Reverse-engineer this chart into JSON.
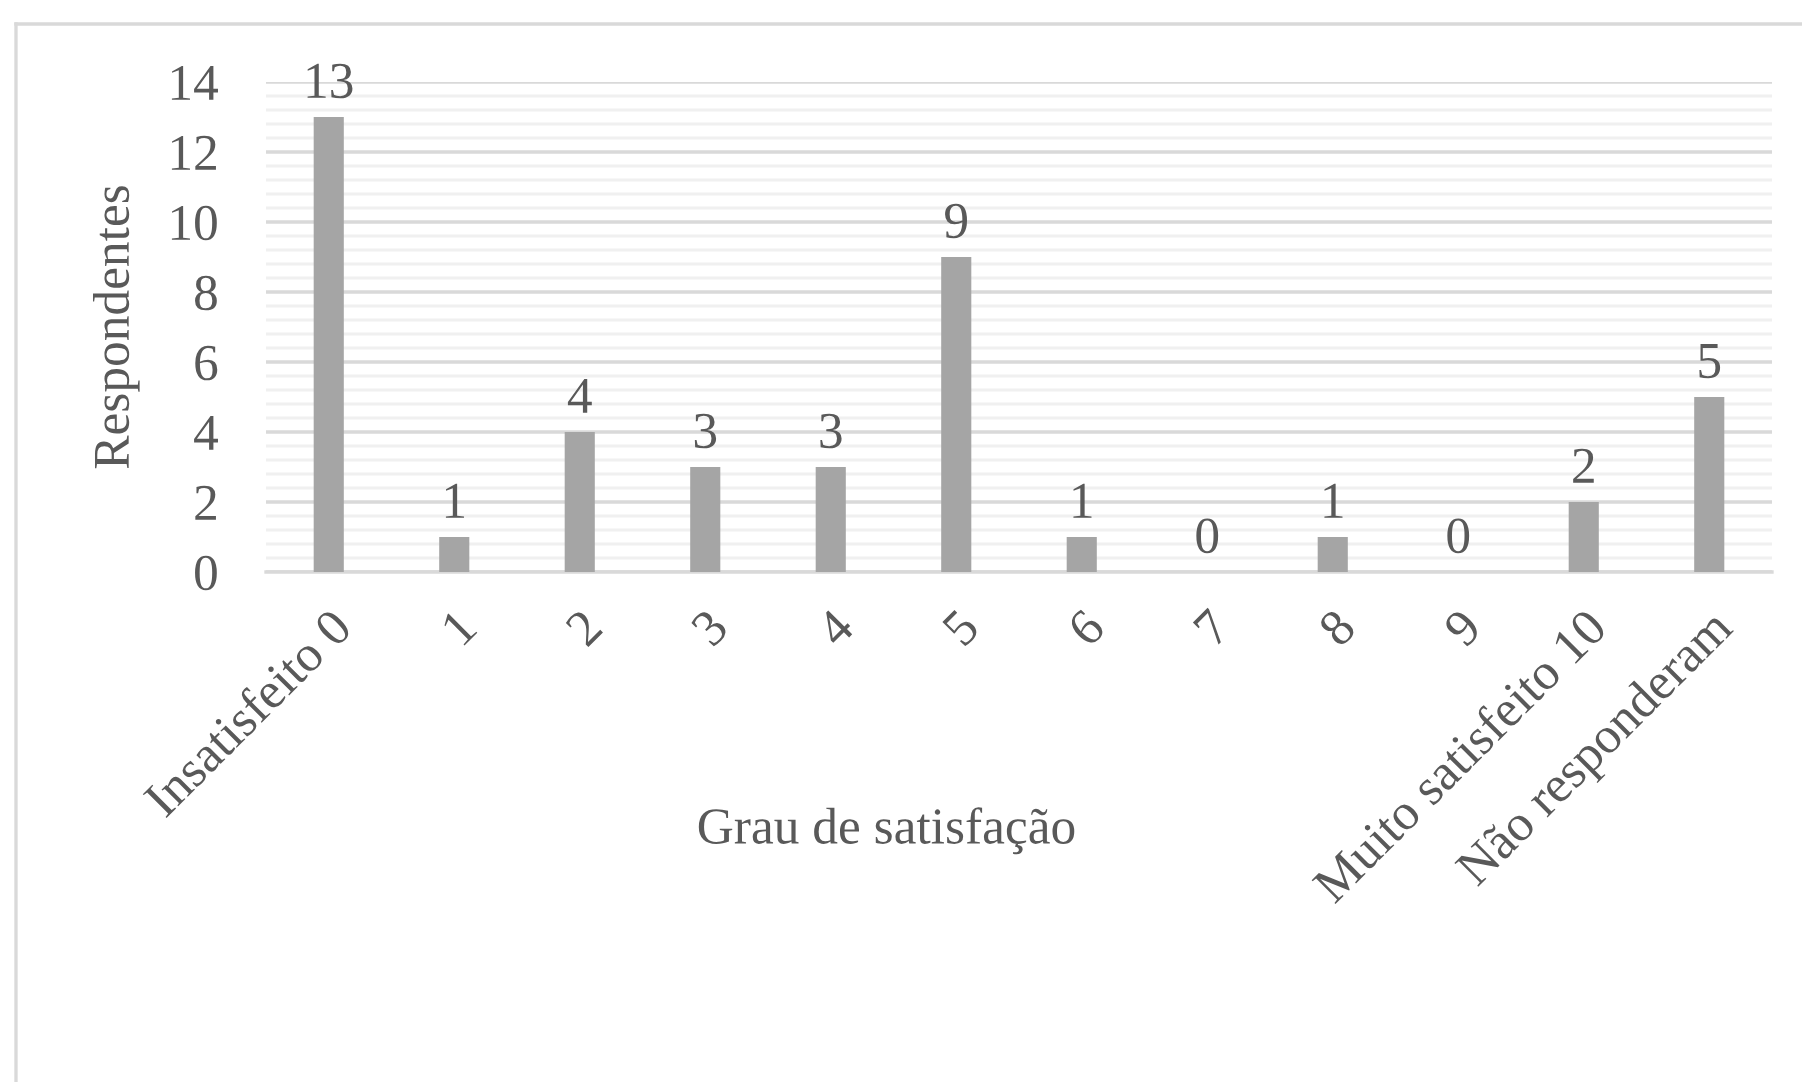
{
  "chart_data": {
    "type": "bar",
    "xlabel": "Grau de satisfação",
    "ylabel": "Respondentes",
    "categories": [
      "Insatisfeito 0",
      "1",
      "2",
      "3",
      "4",
      "5",
      "6",
      "7",
      "8",
      "9",
      "Muito satisfeito 10",
      "Não responderam"
    ],
    "values": [
      13,
      1,
      4,
      3,
      3,
      9,
      1,
      0,
      1,
      0,
      2,
      5
    ],
    "color": "#a5a5a5",
    "ylim": [
      0,
      14
    ],
    "yticks": [
      0,
      2,
      4,
      6,
      8,
      10,
      12,
      14
    ],
    "grid": "y",
    "data_labels": true
  }
}
